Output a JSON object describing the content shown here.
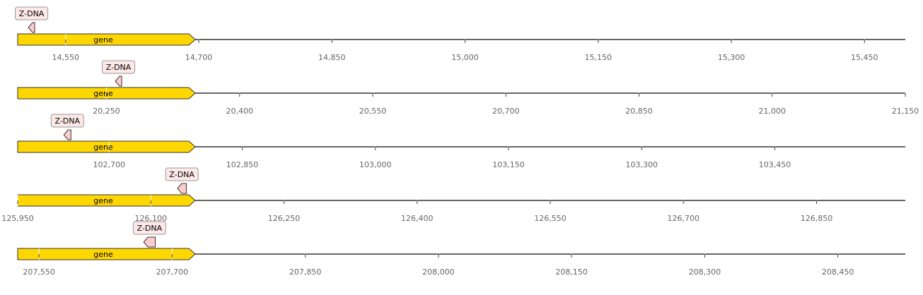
{
  "tracks": [
    {
      "feature": {
        "label": "gene",
        "start_bp": 14496,
        "end_bp": 14696,
        "color": "#ffd700"
      },
      "annotation": {
        "label": "Z-DNA",
        "start_bp": 14508,
        "end_bp": 14513,
        "color": "#ffcccc"
      },
      "view_start_bp": 14496,
      "view_end_bp": 15496,
      "ticks": [
        "14,550",
        "14,700",
        "14,850",
        "15,000",
        "15,150",
        "15,300",
        "15,450"
      ]
    },
    {
      "feature": {
        "label": "gene",
        "start_bp": 20150,
        "end_bp": 20350,
        "color": "#ffd700"
      },
      "annotation": {
        "label": "Z-DNA",
        "start_bp": 20260,
        "end_bp": 20267,
        "color": "#ffcccc"
      },
      "view_start_bp": 20150,
      "view_end_bp": 21150,
      "ticks": [
        "20,250",
        "20,400",
        "20,550",
        "20,700",
        "20,850",
        "21,000",
        "21,150"
      ]
    },
    {
      "feature": {
        "label": "gene",
        "start_bp": 102597,
        "end_bp": 102797,
        "color": "#ffd700"
      },
      "annotation": {
        "label": "Z-DNA",
        "start_bp": 102649,
        "end_bp": 102657,
        "color": "#ffcccc"
      },
      "view_start_bp": 102597,
      "view_end_bp": 103597,
      "ticks": [
        "102,700",
        "102,850",
        "103,000",
        "103,150",
        "103,300",
        "103,450"
      ]
    },
    {
      "feature": {
        "label": "gene",
        "start_bp": 125950,
        "end_bp": 126150,
        "color": "#ffd700"
      },
      "annotation": {
        "label": "Z-DNA",
        "start_bp": 126130,
        "end_bp": 126140,
        "color": "#ffcccc"
      },
      "view_start_bp": 125950,
      "view_end_bp": 126950,
      "ticks": [
        "125,950",
        "126,100",
        "126,250",
        "126,400",
        "126,550",
        "126,700",
        "126,850"
      ]
    },
    {
      "feature": {
        "label": "gene",
        "start_bp": 207526,
        "end_bp": 207726,
        "color": "#ffd700"
      },
      "annotation": {
        "label": "Z-DNA",
        "start_bp": 207668,
        "end_bp": 207681,
        "color": "#ffcccc"
      },
      "view_start_bp": 207526,
      "view_end_bp": 208526,
      "ticks": [
        "207,550",
        "207,700",
        "207,850",
        "208,000",
        "208,150",
        "208,300",
        "208,450"
      ]
    }
  ]
}
